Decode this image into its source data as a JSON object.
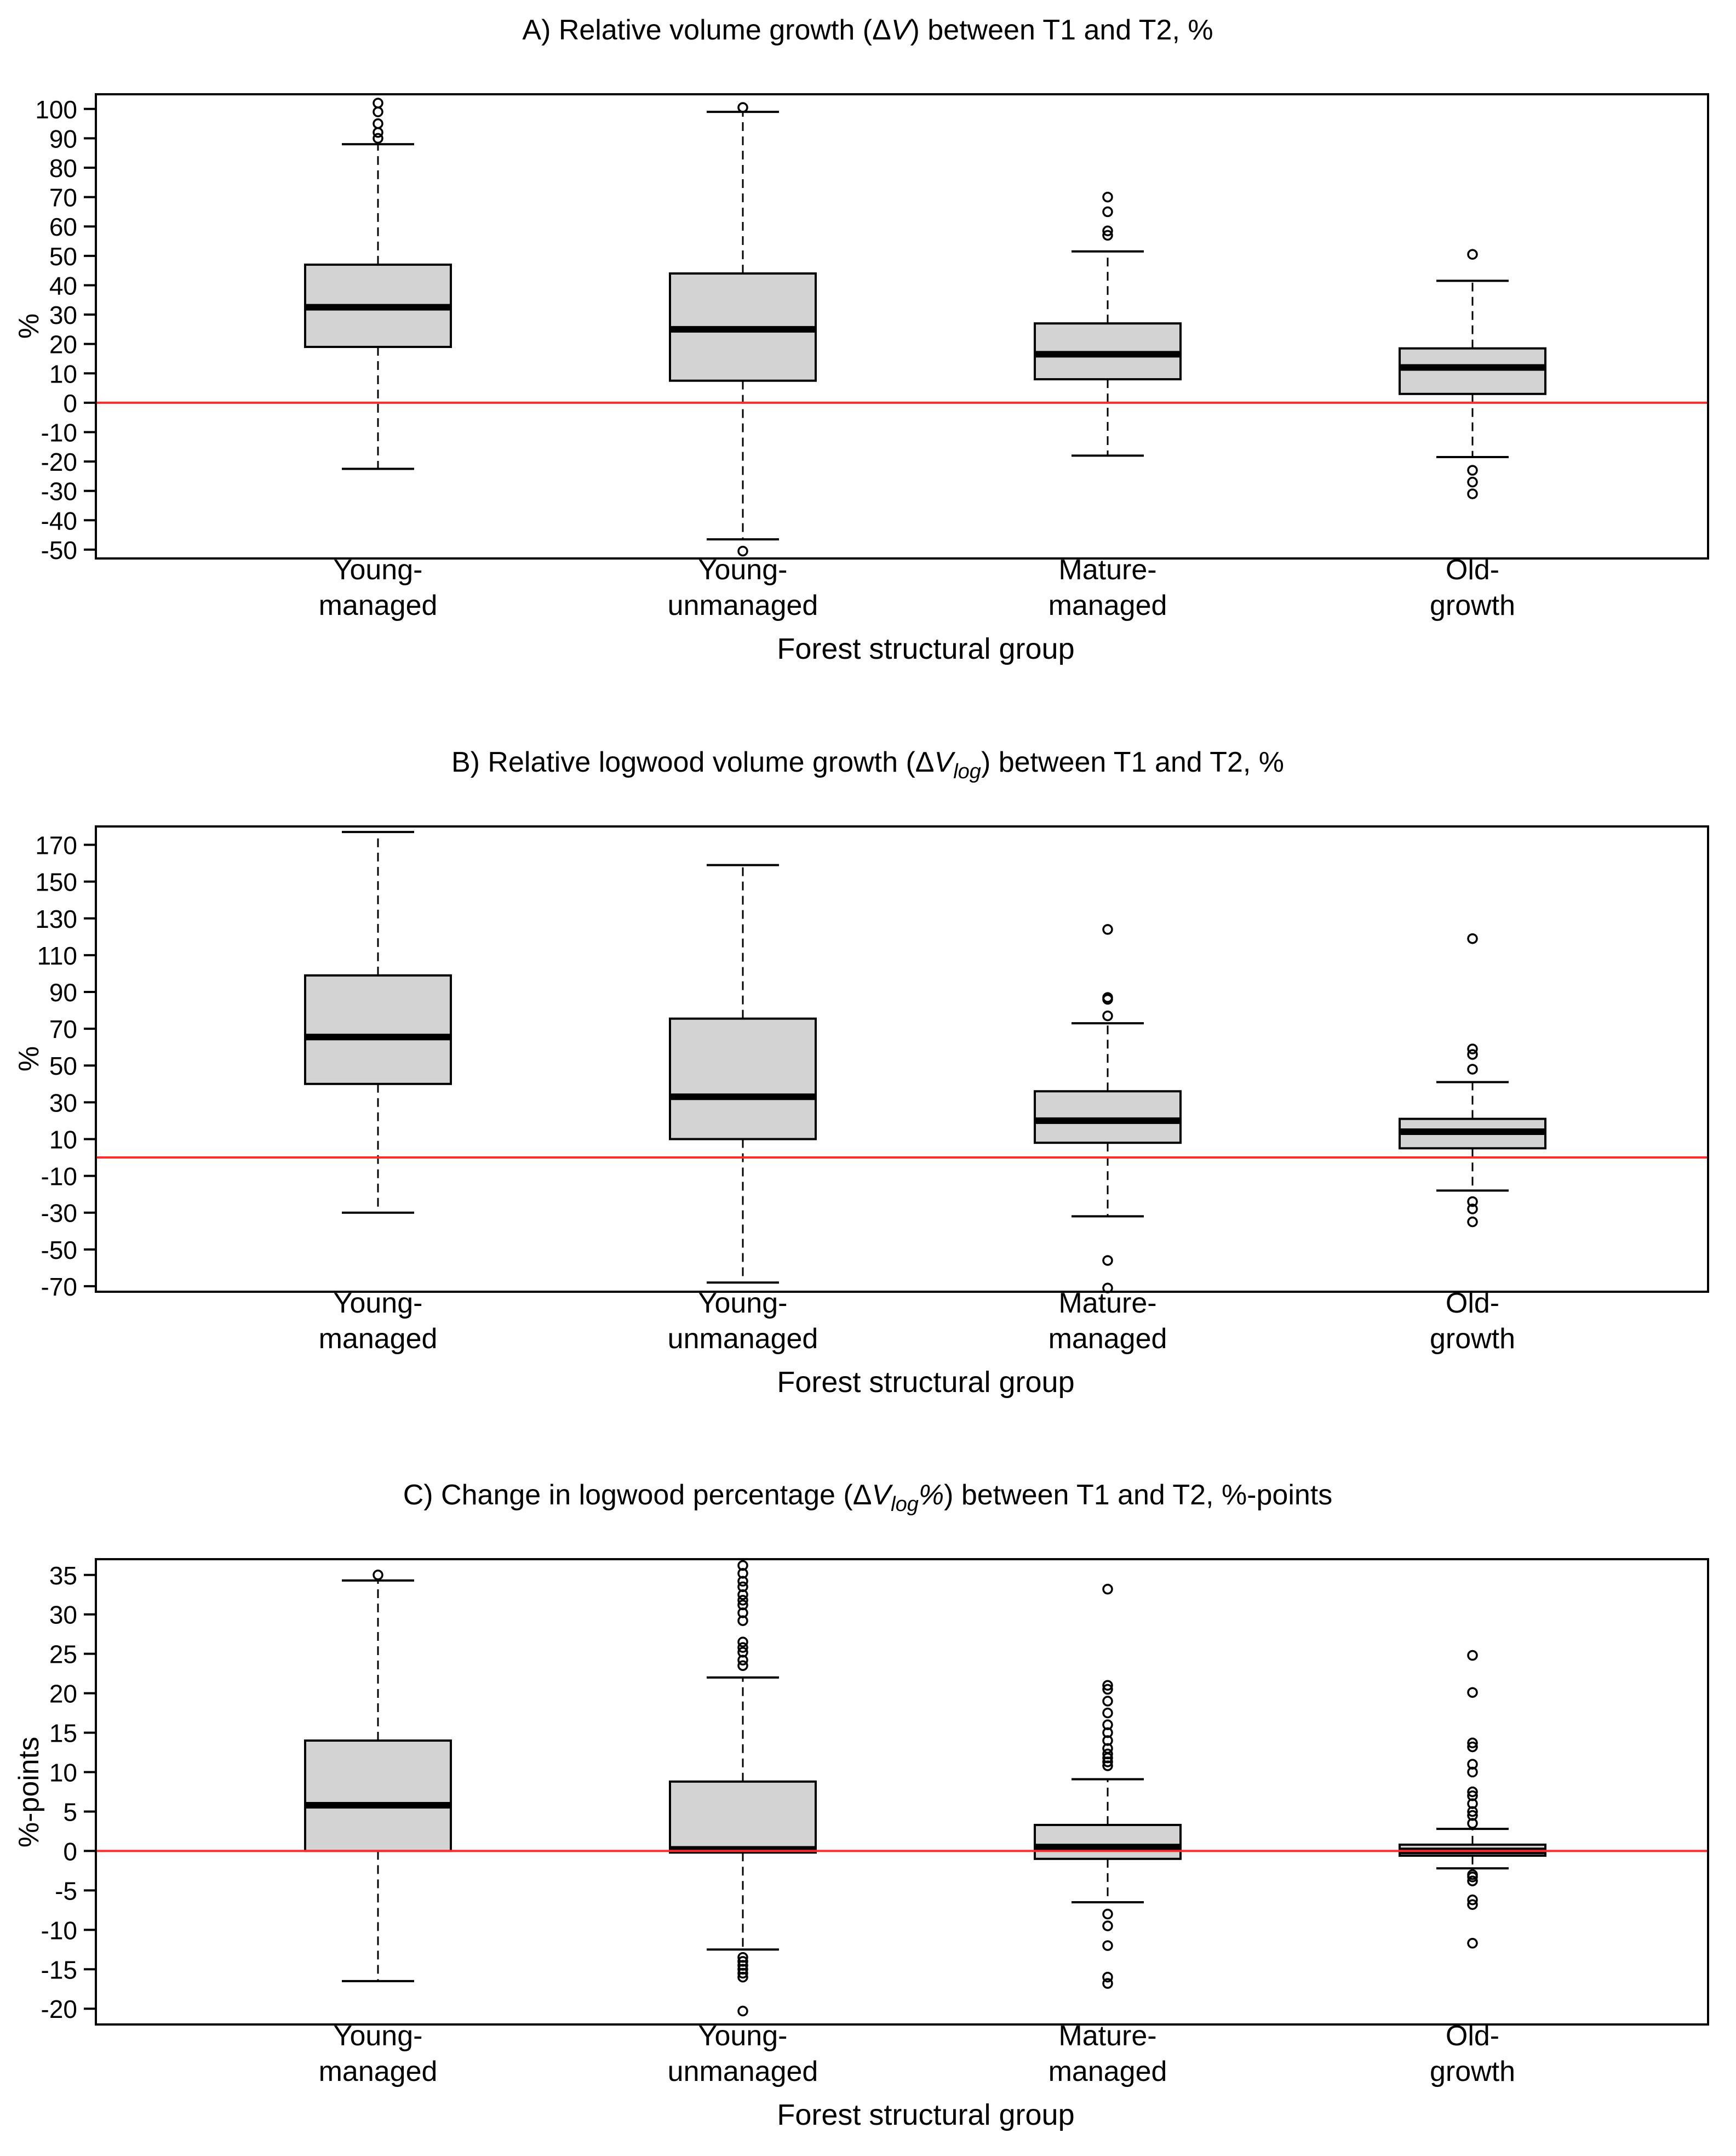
{
  "colors": {
    "box_fill": "#d3d3d3",
    "stroke": "#000000",
    "reference_line": "#ff2a2a",
    "background": "#ffffff"
  },
  "chart_data": [
    {
      "type": "box",
      "title": {
        "parts": [
          {
            "text": "A) Relative volume growth (",
            "style": "normal"
          },
          {
            "text": "Δ",
            "style": "normal"
          },
          {
            "text": "V",
            "style": "italic"
          },
          {
            "text": ") between T1 and T2, %",
            "style": "normal"
          }
        ]
      },
      "xlabel": "Forest structural group",
      "ylabel": "%",
      "ylim": [
        -53,
        105
      ],
      "yticks": [
        100,
        90,
        80,
        70,
        60,
        50,
        40,
        30,
        20,
        10,
        0,
        -10,
        -20,
        -30,
        -40,
        -50
      ],
      "reference_line": 0,
      "categories": [
        {
          "line1": "Young-",
          "line2": "managed"
        },
        {
          "line1": "Young-",
          "line2": "unmanaged"
        },
        {
          "line1": "Mature-",
          "line2": "managed"
        },
        {
          "line1": "Old-",
          "line2": "growth"
        }
      ],
      "boxes": [
        {
          "whisker_low": -22.5,
          "q1": 19,
          "median": 32.5,
          "q3": 47,
          "whisker_high": 88,
          "outliers": [
            102,
            99,
            95,
            92,
            90
          ]
        },
        {
          "whisker_low": -46.5,
          "q1": 7.5,
          "median": 25,
          "q3": 44,
          "whisker_high": 99,
          "outliers": [
            100.5,
            -50.5
          ]
        },
        {
          "whisker_low": -18,
          "q1": 8,
          "median": 16.5,
          "q3": 27,
          "whisker_high": 51.5,
          "outliers": [
            70,
            65,
            58.5,
            57
          ]
        },
        {
          "whisker_low": -18.5,
          "q1": 3,
          "median": 12,
          "q3": 18.5,
          "whisker_high": 41.5,
          "outliers": [
            50.5,
            -23,
            -27,
            -31
          ]
        }
      ]
    },
    {
      "type": "box",
      "title": {
        "parts": [
          {
            "text": "B) Relative logwood volume growth (",
            "style": "normal"
          },
          {
            "text": "Δ",
            "style": "normal"
          },
          {
            "text": "V",
            "style": "italic"
          },
          {
            "text": "log",
            "style": "italic-sub"
          },
          {
            "text": ") between T1 and T2, %",
            "style": "normal"
          }
        ]
      },
      "xlabel": "Forest structural group",
      "ylabel": "%",
      "ylim": [
        -73,
        180
      ],
      "yticks": [
        170,
        150,
        130,
        110,
        90,
        70,
        50,
        30,
        10,
        -10,
        -30,
        -50,
        -70
      ],
      "reference_line": 0,
      "categories": [
        {
          "line1": "Young-",
          "line2": "managed"
        },
        {
          "line1": "Young-",
          "line2": "unmanaged"
        },
        {
          "line1": "Mature-",
          "line2": "managed"
        },
        {
          "line1": "Old-",
          "line2": "growth"
        }
      ],
      "boxes": [
        {
          "whisker_low": -30,
          "q1": 40,
          "median": 65.5,
          "q3": 99,
          "whisker_high": 177,
          "outliers": []
        },
        {
          "whisker_low": -68,
          "q1": 10,
          "median": 33,
          "q3": 75.5,
          "whisker_high": 159,
          "outliers": []
        },
        {
          "whisker_low": -32,
          "q1": 8,
          "median": 20,
          "q3": 36,
          "whisker_high": 73,
          "outliers": [
            124,
            87,
            86,
            77,
            -56,
            -71
          ]
        },
        {
          "whisker_low": -18,
          "q1": 5,
          "median": 14,
          "q3": 21,
          "whisker_high": 41,
          "outliers": [
            119,
            59,
            56,
            48,
            -24,
            -28,
            -35
          ]
        }
      ]
    },
    {
      "type": "box",
      "title": {
        "parts": [
          {
            "text": "C) Change in logwood percentage (",
            "style": "normal"
          },
          {
            "text": "Δ",
            "style": "normal"
          },
          {
            "text": "V",
            "style": "italic"
          },
          {
            "text": "log",
            "style": "italic-sub"
          },
          {
            "text": "%",
            "style": "italic"
          },
          {
            "text": ") between T1 and T2, %-points",
            "style": "normal"
          }
        ]
      },
      "xlabel": "Forest structural group",
      "ylabel": "%-points",
      "ylim": [
        -22,
        37
      ],
      "yticks": [
        35,
        30,
        25,
        20,
        15,
        10,
        5,
        0,
        -5,
        -10,
        -15,
        -20
      ],
      "reference_line": 0,
      "categories": [
        {
          "line1": "Young-",
          "line2": "managed"
        },
        {
          "line1": "Young-",
          "line2": "unmanaged"
        },
        {
          "line1": "Mature-",
          "line2": "managed"
        },
        {
          "line1": "Old-",
          "line2": "growth"
        }
      ],
      "boxes": [
        {
          "whisker_low": -16.5,
          "q1": 0,
          "median": 5.8,
          "q3": 14,
          "whisker_high": 34.3,
          "outliers": [
            35
          ]
        },
        {
          "whisker_low": -12.5,
          "q1": -0.2,
          "median": 0.2,
          "q3": 8.8,
          "whisker_high": 22,
          "outliers": [
            36.2,
            35.2,
            34.2,
            33.5,
            32.5,
            31.8,
            31.2,
            30.2,
            29.2,
            26.5,
            25.8,
            25.2,
            24.2,
            23.5,
            -13.5,
            -14,
            -14.5,
            -15,
            -15.5,
            -16,
            -20.3
          ]
        },
        {
          "whisker_low": -6.5,
          "q1": -1,
          "median": 0.5,
          "q3": 3.3,
          "whisker_high": 9.1,
          "outliers": [
            33.2,
            21,
            20.5,
            19,
            17.5,
            16,
            15,
            14,
            13,
            12.3,
            11.8,
            11.3,
            10.8,
            -8,
            -9.5,
            -12,
            -16,
            -16.8
          ]
        },
        {
          "whisker_low": -2.2,
          "q1": -0.6,
          "median": 0,
          "q3": 0.8,
          "whisker_high": 2.8,
          "outliers": [
            24.8,
            20.1,
            13.7,
            13.2,
            11,
            10,
            7.5,
            7,
            6,
            5,
            4.5,
            3.5,
            -3,
            -3.3,
            -3.8,
            -6.2,
            -6.8,
            -11.7
          ]
        }
      ]
    }
  ]
}
